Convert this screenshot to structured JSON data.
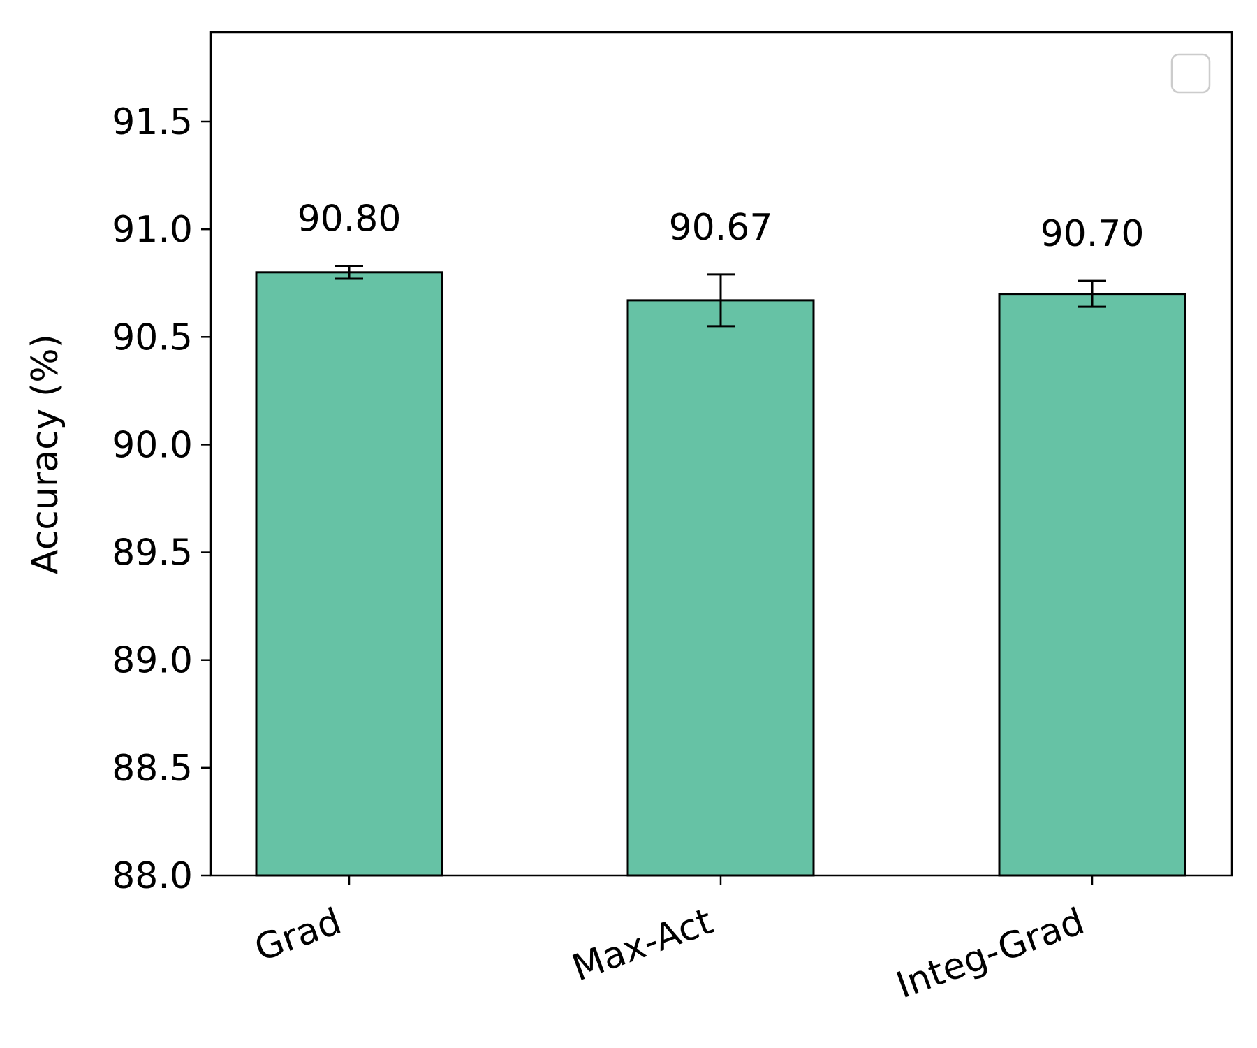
{
  "chart_data": {
    "type": "bar",
    "categories": [
      "Grad",
      "Max-Act",
      "Integ-Grad"
    ],
    "values": [
      90.8,
      90.67,
      90.7
    ],
    "errors": [
      0.03,
      0.12,
      0.06
    ],
    "data_labels": [
      "90.80",
      "90.67",
      "90.70"
    ],
    "ylabel": "Accuracy (%)",
    "ylim": [
      88.0,
      91.9
    ],
    "yticks": [
      88.0,
      88.5,
      89.0,
      89.5,
      90.0,
      90.5,
      91.0,
      91.5
    ],
    "ytick_labels": [
      "88.0",
      "88.5",
      "89.0",
      "89.5",
      "90.0",
      "90.5",
      "91.0",
      "91.5"
    ],
    "grid": false,
    "legend": "top-right (empty)",
    "bar_color": "#66c2a5",
    "edge_color": "#000000"
  }
}
